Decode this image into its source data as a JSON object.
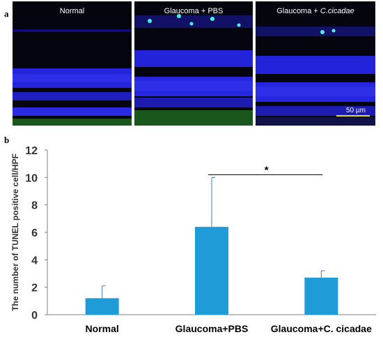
{
  "figure": {
    "panel_a_label": "a",
    "panel_b_label": "b"
  },
  "micrographs": [
    {
      "title": "Normal",
      "title_italic": ""
    },
    {
      "title": "Glaucoma + PBS",
      "title_italic": ""
    },
    {
      "title": "Glaucoma + ",
      "title_italic": "C.cicadae"
    }
  ],
  "scale_bar": {
    "label": "50 µm",
    "color": "#e6e600"
  },
  "colors": {
    "bar": "#1f9bd7",
    "nuclei": "#2323d9",
    "tunel_positive": "#4df0e0",
    "background_stain": "#1f6b1f"
  },
  "chart_data": {
    "type": "bar",
    "categories": [
      "Normal",
      "Glaucoma+PBS",
      "Glaucoma+C. cicadae"
    ],
    "values": [
      1.2,
      6.4,
      2.7
    ],
    "error_upper": [
      0.9,
      3.6,
      0.5
    ],
    "ylabel": "The number of TUNEL positive cell/HPF",
    "xlabel": "",
    "ylim": [
      0,
      12
    ],
    "yticks": [
      0,
      2,
      4,
      6,
      8,
      10,
      12
    ],
    "grid": false,
    "significance": {
      "from": 1,
      "to": 2,
      "label": "*"
    }
  }
}
